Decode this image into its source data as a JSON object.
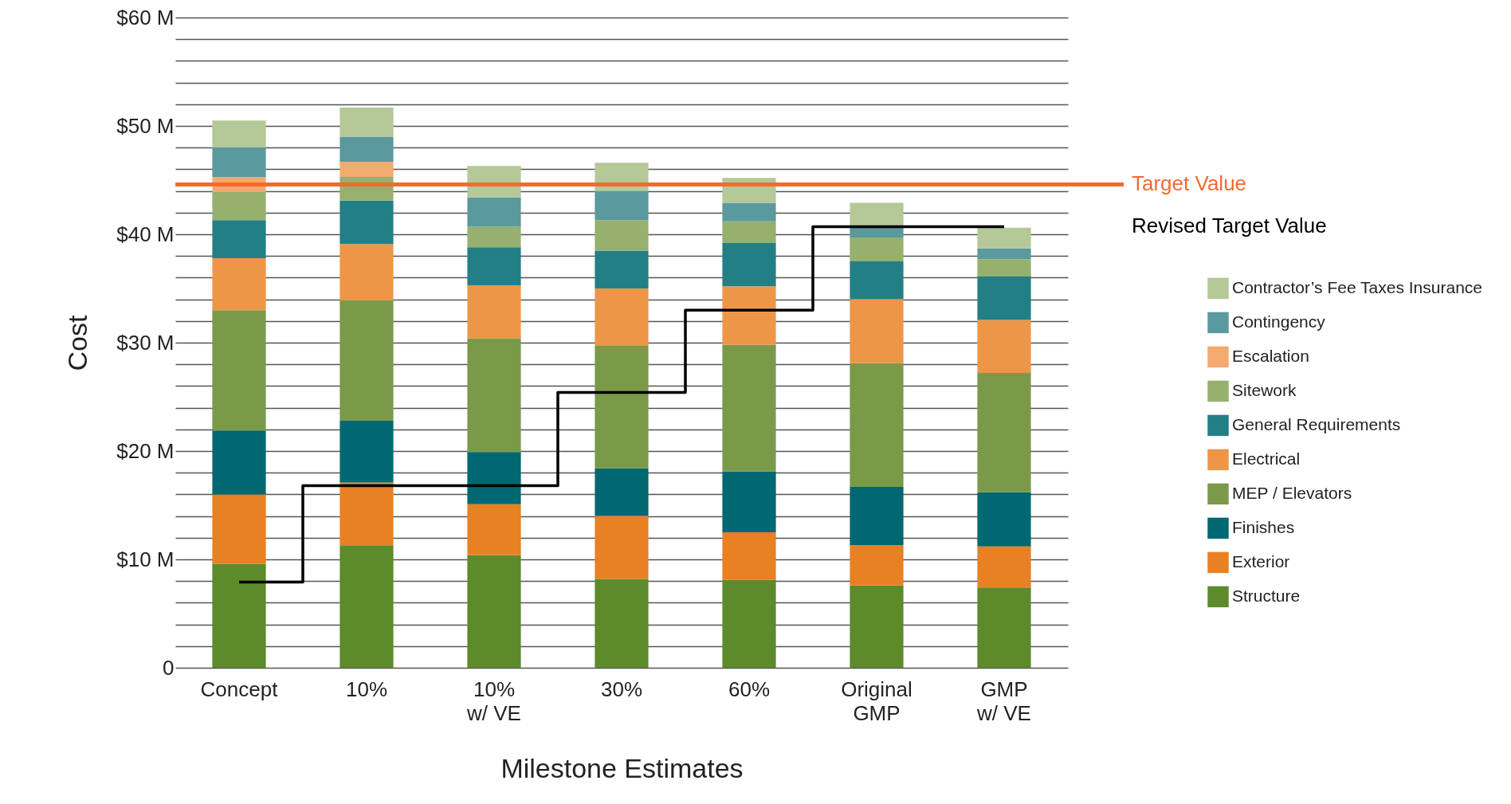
{
  "chart_data": {
    "type": "bar",
    "stacked": true,
    "xlabel": "Milestone Estimates",
    "ylabel": "Cost",
    "categories": [
      "Concept",
      "10%",
      "10% w/ VE",
      "30%",
      "60%",
      "Original GMP",
      "GMP w/ VE"
    ],
    "series": [
      {
        "name": "Structure",
        "color": "#5d8a2a",
        "values": [
          9.6,
          11.3,
          10.4,
          8.2,
          8.1,
          7.6,
          7.4
        ]
      },
      {
        "name": "Exterior",
        "color": "#e88024",
        "values": [
          6.4,
          5.8,
          4.7,
          5.8,
          4.4,
          3.7,
          3.8
        ]
      },
      {
        "name": "Finishes",
        "color": "#006870",
        "values": [
          5.9,
          5.7,
          4.8,
          4.4,
          5.6,
          5.4,
          5.0
        ]
      },
      {
        "name": "MEP / Elevators",
        "color": "#7a9a4a",
        "values": [
          11.1,
          11.1,
          10.5,
          11.3,
          11.7,
          11.4,
          11.0
        ]
      },
      {
        "name": "Electrical",
        "color": "#ee9648",
        "values": [
          4.8,
          5.2,
          4.9,
          5.3,
          5.4,
          5.9,
          4.9
        ]
      },
      {
        "name": "General Requirements",
        "color": "#237f86",
        "values": [
          3.5,
          4.0,
          3.5,
          3.5,
          4.0,
          3.5,
          4.0
        ]
      },
      {
        "name": "Sitework",
        "color": "#96b06e",
        "values": [
          2.6,
          2.2,
          1.9,
          2.8,
          2.0,
          2.2,
          1.6
        ]
      },
      {
        "name": "Escalation",
        "color": "#f2aa6e",
        "values": [
          1.4,
          1.4,
          0,
          0,
          0,
          0,
          0
        ]
      },
      {
        "name": "Contingency",
        "color": "#5a999e",
        "values": [
          2.7,
          2.3,
          2.7,
          2.7,
          1.7,
          0.9,
          1.0
        ]
      },
      {
        "name": "Contractor’s Fee Taxes Insurance",
        "color": "#b4c898",
        "values": [
          2.5,
          2.7,
          2.9,
          2.6,
          2.3,
          2.3,
          1.9
        ]
      },
      {
        "name": "Revised Target Value",
        "type": "step",
        "color": "#000000",
        "values": [
          7.9,
          16.8,
          16.8,
          25.4,
          33.0,
          40.7,
          40.7
        ]
      }
    ],
    "ref_lines": [
      {
        "axis": "y",
        "value": 44.6,
        "label": "Target Value",
        "color": "#f26a30"
      }
    ],
    "ylim": [
      0,
      60
    ],
    "yticks": [
      0,
      {
        "value": 2,
        "label": null
      },
      {
        "value": 4,
        "label": null
      },
      {
        "value": 6,
        "label": null
      },
      {
        "value": 8,
        "label": null
      },
      {
        "value": 10,
        "label": "$10 M"
      },
      {
        "value": 12,
        "label": null
      },
      {
        "value": 14,
        "label": null
      },
      {
        "value": 16,
        "label": null
      },
      {
        "value": 18,
        "label": null
      },
      {
        "value": 20,
        "label": "$20 M"
      },
      {
        "value": 22,
        "label": null
      },
      {
        "value": 24,
        "label": null
      },
      {
        "value": 26,
        "label": null
      },
      {
        "value": 28,
        "label": null
      },
      {
        "value": 30,
        "label": "$30 M"
      },
      {
        "value": 32,
        "label": null
      },
      {
        "value": 34,
        "label": null
      },
      {
        "value": 36,
        "label": null
      },
      {
        "value": 38,
        "label": null
      },
      {
        "value": 40,
        "label": "$40 M"
      },
      {
        "value": 42,
        "label": null
      },
      {
        "value": 44,
        "label": null
      },
      {
        "value": 46,
        "label": null
      },
      {
        "value": 48,
        "label": null
      },
      {
        "value": 50,
        "label": "$50 M"
      },
      {
        "value": 52,
        "label": null
      },
      {
        "value": 54,
        "label": null
      },
      {
        "value": 56,
        "label": null
      },
      {
        "value": 58,
        "label": null
      },
      {
        "value": 60,
        "label": "$60 M"
      }
    ],
    "grid": "y",
    "legend": "right"
  }
}
